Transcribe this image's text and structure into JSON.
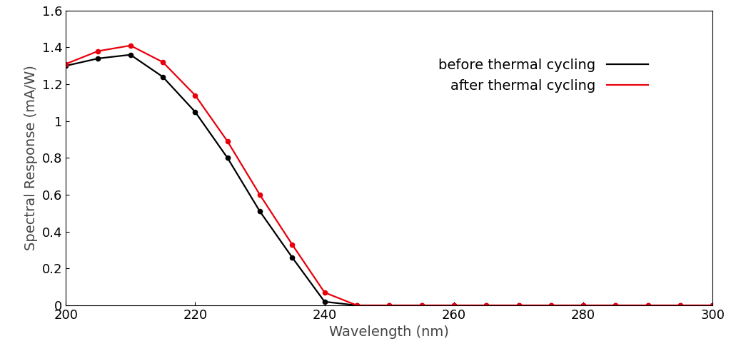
{
  "chart_data": {
    "type": "line",
    "x_label": "Wavelength (nm)",
    "y_label": "Spectral Response (mA/W)",
    "x": [
      200,
      205,
      210,
      215,
      220,
      225,
      230,
      235,
      240,
      245,
      250,
      255,
      260,
      265,
      270,
      275,
      280,
      285,
      290,
      295,
      300
    ],
    "series": [
      {
        "name": "before thermal cycling",
        "color": "#000000",
        "marker": "o",
        "line_style": "solid",
        "values": [
          1.3,
          1.34,
          1.36,
          1.24,
          1.05,
          0.8,
          0.51,
          0.26,
          0.02,
          0,
          0,
          0,
          0,
          0,
          0,
          0,
          0,
          0,
          0,
          0,
          0
        ]
      },
      {
        "name": "after thermal cycling",
        "color": "#e8000b",
        "marker": "o",
        "line_style": "solid",
        "values": [
          1.31,
          1.38,
          1.41,
          1.32,
          1.14,
          0.89,
          0.6,
          0.33,
          0.07,
          0,
          0,
          0,
          0,
          0,
          0,
          0,
          0,
          0,
          0,
          0,
          0
        ]
      }
    ],
    "xlim": [
      200,
      300
    ],
    "xticks": [
      200,
      220,
      240,
      260,
      280,
      300
    ],
    "ylim": [
      0,
      1.6
    ],
    "yticks": [
      0,
      0.2,
      0.4,
      0.6,
      0.8,
      1,
      1.2,
      1.4,
      1.6
    ],
    "grid": false,
    "legend": "upper right"
  }
}
